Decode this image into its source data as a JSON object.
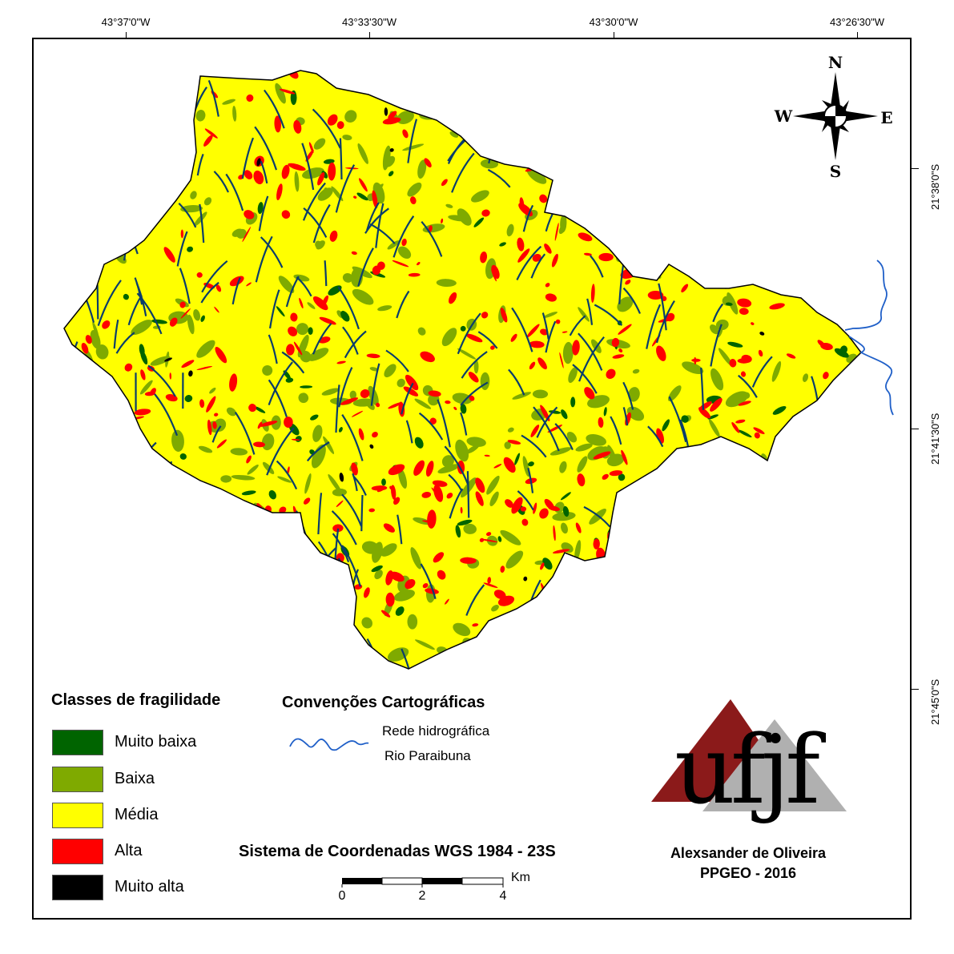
{
  "graticule": {
    "longitudes": [
      "43°37'0\"W",
      "43°33'30\"W",
      "43°30'0\"W",
      "43°26'30\"W"
    ],
    "latitudes": [
      "21°38'0\"S",
      "21°41'30\"S",
      "21°45'0\"S"
    ]
  },
  "north_arrow": {
    "n": "N",
    "s": "S",
    "e": "E",
    "w": "W"
  },
  "legend": {
    "title": "Classes de fragilidade",
    "classes": [
      {
        "label": "Muito baixa",
        "color": "#006400"
      },
      {
        "label": "Baixa",
        "color": "#7FAA00"
      },
      {
        "label": "Média",
        "color": "#FFFF00"
      },
      {
        "label": "Alta",
        "color": "#FF0000"
      },
      {
        "label": "Muito alta",
        "color": "#000000"
      }
    ]
  },
  "conventions": {
    "title": "Convenções Cartográficas",
    "items": [
      "Rede hidrográfica",
      "Rio Paraibuna"
    ],
    "river_color": "#1F5FC8"
  },
  "crs": "Sistema de Coordenadas WGS 1984 - 23S",
  "scale_bar": {
    "labels": [
      "0",
      "2",
      "4"
    ],
    "unit": "Km"
  },
  "logo": {
    "text": "ufjf",
    "colors": [
      "#8B1A1A",
      "#B0B0B0",
      "#000000"
    ]
  },
  "author": {
    "name": "Alexsander de Oliveira",
    "program": "PPGEO - 2016"
  }
}
